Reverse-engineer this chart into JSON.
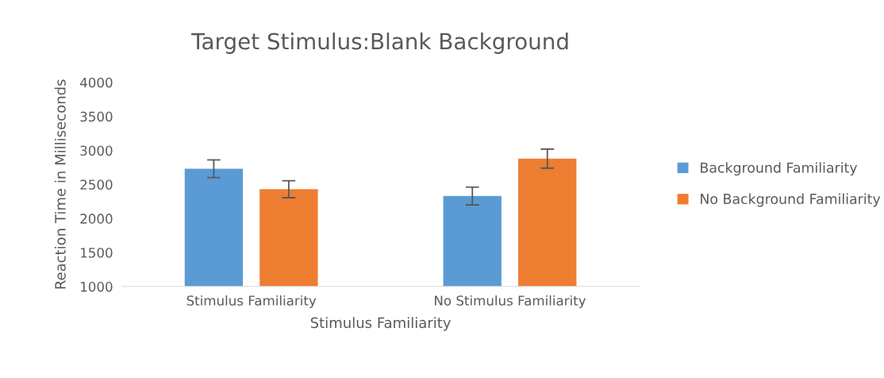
{
  "chart_data": {
    "type": "bar",
    "title": "Target Stimulus:Blank Background",
    "xlabel": "Stimulus Familiarity",
    "ylabel": "Reaction Time in Milliseconds",
    "categories": [
      "Stimulus Familiarity",
      "No Stimulus Familiarity"
    ],
    "series": [
      {
        "name": "Background Familiarity",
        "color": "#5b9bd5",
        "values": [
          2730,
          2330
        ],
        "errors": [
          130,
          130
        ]
      },
      {
        "name": "No Background Familiarity",
        "color": "#ed7d31",
        "values": [
          2430,
          2880
        ],
        "errors": [
          125,
          140
        ]
      }
    ],
    "ylim": [
      1000,
      4000
    ],
    "yticks": [
      1000,
      1500,
      2000,
      2500,
      3000,
      3500,
      4000
    ],
    "grid": false,
    "legend": "right"
  }
}
